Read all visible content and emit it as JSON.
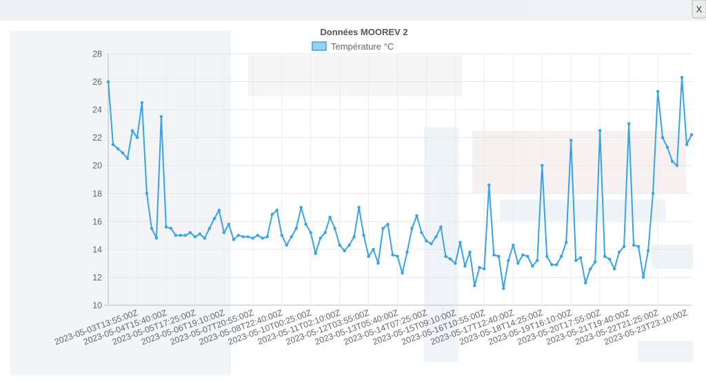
{
  "close_button": "X",
  "chart_data": {
    "type": "line",
    "title": "Données MOOREV 2",
    "categories": [
      "2023-05-03T13:55:00Z",
      null,
      null,
      null,
      null,
      null,
      "2023-05-04T15:40:00Z",
      null,
      null,
      null,
      null,
      null,
      "2023-05-05T17:25:00Z",
      null,
      null,
      null,
      null,
      null,
      "2023-05-06T19:10:00Z",
      null,
      null,
      null,
      null,
      null,
      "2023-05-07T20:55:00Z",
      null,
      null,
      null,
      null,
      null,
      "2023-05-08T22:40:00Z",
      null,
      null,
      null,
      null,
      null,
      "2023-05-10T00:25:00Z",
      null,
      null,
      null,
      null,
      null,
      "2023-05-11T02:10:00Z",
      null,
      null,
      null,
      null,
      null,
      "2023-05-12T03:55:00Z",
      null,
      null,
      null,
      null,
      null,
      "2023-05-13T05:40:00Z",
      null,
      null,
      null,
      null,
      null,
      "2023-05-14T07:25:00Z",
      null,
      null,
      null,
      null,
      null,
      "2023-05-15T09:10:00Z",
      null,
      null,
      null,
      null,
      null,
      "2023-05-16T10:55:00Z",
      null,
      null,
      null,
      null,
      null,
      "2023-05-17T12:40:00Z",
      null,
      null,
      null,
      null,
      null,
      "2023-05-18T14:25:00Z",
      null,
      null,
      null,
      null,
      null,
      "2023-05-19T16:10:00Z",
      null,
      null,
      null,
      null,
      null,
      "2023-05-20T17:55:00Z",
      null,
      null,
      null,
      null,
      null,
      "2023-05-21T19:40:00Z",
      null,
      null,
      null,
      null,
      null,
      "2023-05-22T21:25:00Z",
      null,
      null,
      null,
      null,
      null,
      "2023-05-23T23:10:00Z",
      null,
      null,
      null,
      null,
      null,
      null,
      null
    ],
    "series": [
      {
        "name": "Température °C",
        "color": "#36a2eb",
        "values": [
          26,
          21.5,
          21.2,
          20.9,
          20.5,
          22.5,
          22,
          24.5,
          18,
          15.5,
          14.8,
          23.5,
          15.6,
          15.5,
          15,
          15,
          15,
          15.2,
          14.9,
          15.1,
          14.8,
          15.5,
          16.2,
          16.8,
          15.2,
          15.8,
          14.7,
          15,
          14.9,
          14.9,
          14.8,
          15,
          14.8,
          14.9,
          16.5,
          16.8,
          15,
          14.3,
          14.9,
          15.5,
          17,
          15.8,
          15.2,
          13.7,
          14.8,
          15.2,
          16.3,
          15.5,
          14.3,
          13.9,
          14.3,
          14.9,
          17,
          15,
          13.5,
          14,
          13,
          15.5,
          15.8,
          13.6,
          13.5,
          12.3,
          13.8,
          15.5,
          16.4,
          15.2,
          14.6,
          14.4,
          14.9,
          15.6,
          13.5,
          13.3,
          13,
          14.5,
          12.8,
          13.8,
          11.4,
          12.7,
          12.6,
          18.6,
          13.6,
          13.5,
          11.2,
          13.2,
          14.3,
          13,
          13.6,
          13.5,
          12.8,
          13.2,
          20,
          13.5,
          12.9,
          12.9,
          13.5,
          14.5,
          21.8,
          13.2,
          13.4,
          11.6,
          12.6,
          13.1,
          22.5,
          13.5,
          13.3,
          12.6,
          13.8,
          14.2,
          23,
          14.3,
          14.2,
          12,
          13.9,
          18,
          25.3,
          22,
          21.3,
          20.3,
          20,
          26.3,
          21.5,
          22.2
        ]
      }
    ],
    "ylim": [
      10,
      28
    ],
    "yticks": [
      10,
      12,
      14,
      16,
      18,
      20,
      22,
      24,
      26,
      28
    ],
    "grid": true,
    "legend": "top"
  }
}
